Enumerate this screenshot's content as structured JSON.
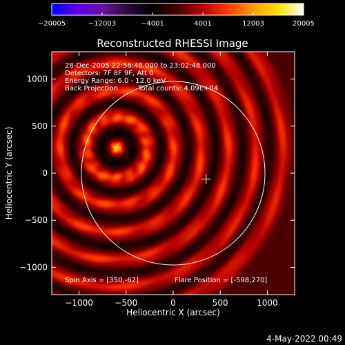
{
  "chart_data": {
    "type": "heatmap",
    "title": "Reconstructed RHESSI Image",
    "xlabel": "Heliocentric X (arcsec)",
    "ylabel": "Heliocentric Y (arcsec)",
    "xlim": [
      -1290,
      1290
    ],
    "ylim": [
      -1290,
      1290
    ],
    "xticks": [
      {
        "value": -1000,
        "label": "−1000"
      },
      {
        "value": -500,
        "label": "−500"
      },
      {
        "value": 0,
        "label": "0"
      },
      {
        "value": 500,
        "label": "500"
      },
      {
        "value": 1000,
        "label": "1000"
      }
    ],
    "yticks": [
      {
        "value": 1000,
        "label": "1000"
      },
      {
        "value": 500,
        "label": "500"
      },
      {
        "value": 0,
        "label": "0"
      },
      {
        "value": -500,
        "label": "−500"
      },
      {
        "value": -1000,
        "label": "−1000"
      }
    ],
    "colorbar": {
      "range": [
        -20005,
        20005
      ],
      "tick_values": [
        -20005,
        -12003,
        -4001,
        4001,
        12003,
        20005
      ],
      "tick_labels": [
        "−20005",
        "−12003",
        "−4001",
        "4001",
        "12003",
        "20005"
      ],
      "colors": [
        "#0000ff",
        "#5a00e6",
        "#6a10a0",
        "#2a0a40",
        "#000000",
        "#4a0000",
        "#b80000",
        "#ff3a00",
        "#ff9a00",
        "#ffe000",
        "#ffffff"
      ]
    },
    "annotations": [
      "28-Dec-2005 22:56:48.000 to 23:02:48.000",
      "Detectors: 7F 8F 9F, Att 0",
      "Energy Range: 6.0 - 12.0 keV",
      "Back Projection",
      "Total counts: 4.09E+04"
    ],
    "footer_left": "Spin Axis = [350,-62]",
    "footer_right": "Flare Position = [-598,270]",
    "source": {
      "x": -598,
      "y": 270,
      "peak": 20005
    },
    "spin_axis": {
      "x": 350,
      "y": -62
    },
    "solar_limb_radius": 975,
    "rings": [
      {
        "r": 170,
        "v": -4500,
        "w": 55
      },
      {
        "r": 330,
        "v": 11000,
        "w": 60
      },
      {
        "r": 470,
        "v": -4500,
        "w": 55
      },
      {
        "r": 610,
        "v": 9500,
        "w": 60
      },
      {
        "r": 760,
        "v": -4000,
        "w": 55
      },
      {
        "r": 900,
        "v": 9000,
        "w": 60
      },
      {
        "r": 1050,
        "v": -4000,
        "w": 55
      },
      {
        "r": 1190,
        "v": 8500,
        "w": 60
      },
      {
        "r": 1340,
        "v": -3500,
        "w": 55
      },
      {
        "r": 1480,
        "v": 8000,
        "w": 60
      },
      {
        "r": 1620,
        "v": -3500,
        "w": 55
      },
      {
        "r": 1760,
        "v": 7500,
        "w": 60
      }
    ]
  },
  "timestamp": "4-May-2022 00:49"
}
